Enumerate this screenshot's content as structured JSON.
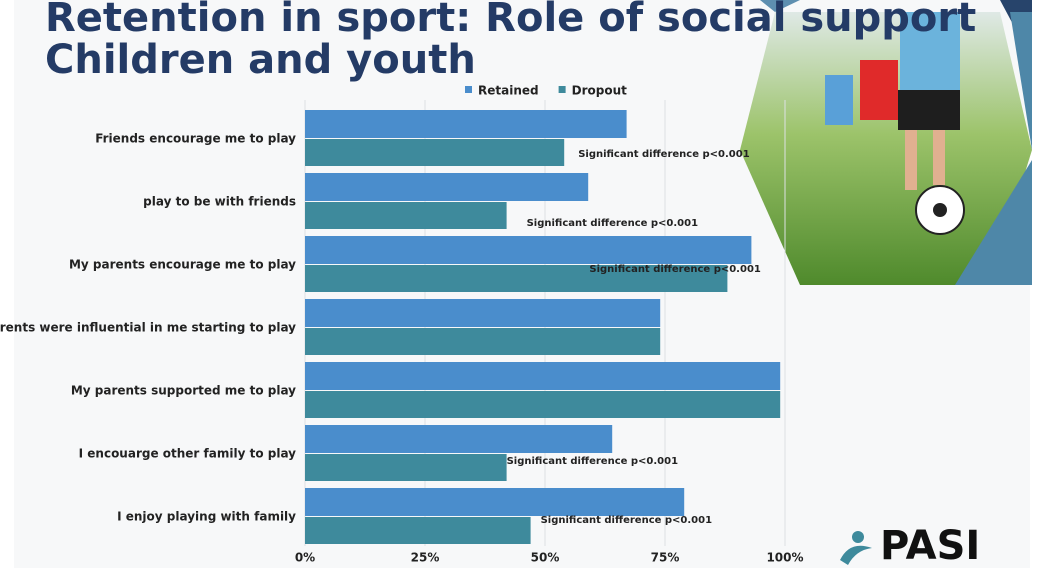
{
  "chart_data": {
    "type": "hbar",
    "title": "Retention in sport: Role of social support",
    "subtitle": "Children and youth",
    "categories": [
      "Friends encourage me to play",
      "play to be with friends",
      "My parents encourage me to play",
      "My parents were influential in me starting to play",
      "My parents supported me to play",
      "I encouarge other family to play",
      "I enjoy playing with family"
    ],
    "series": [
      {
        "name": "Retained",
        "color": "#4a8dcc",
        "values": [
          67,
          59,
          93,
          74,
          99,
          64,
          79
        ]
      },
      {
        "name": "Dropout",
        "color": "#3e8a9c",
        "values": [
          54,
          42,
          88,
          74,
          99,
          42,
          47
        ]
      }
    ],
    "xlim": [
      0,
      100
    ],
    "xticks": [
      {
        "value": 0,
        "label": "0%"
      },
      {
        "value": 25,
        "label": "25%"
      },
      {
        "value": 50,
        "label": "50%"
      },
      {
        "value": 75,
        "label": "75%"
      },
      {
        "value": 100,
        "label": "100%"
      }
    ],
    "grid": true,
    "legend": "top",
    "annotations": [
      {
        "category": 0,
        "text": "Significant difference p<0.001"
      },
      {
        "category": 1,
        "text": "Significant difference p<0.001"
      },
      {
        "category": 2,
        "text": "Significant difference p<0.001"
      },
      {
        "category": 5,
        "text": "Significant difference p<0.001"
      },
      {
        "category": 6,
        "text": "Significant difference p<0.001"
      }
    ],
    "logo": "PASI"
  }
}
